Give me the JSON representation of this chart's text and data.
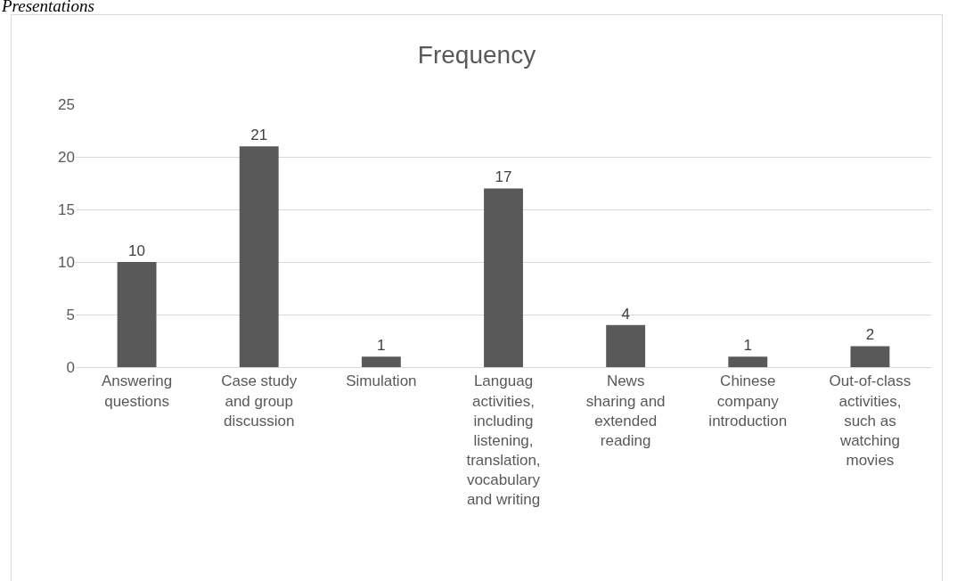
{
  "chart_data": {
    "type": "bar",
    "title": "Frequency",
    "annotations": [
      "Presentations"
    ],
    "categories": [
      "Answering questions",
      "Case study and group discussion",
      "Simulation",
      "Languag activities, including listening, translation, vocabulary and writing",
      "News sharing and extended reading",
      "Chinese company introduction",
      "Out-of-class activities, such as watching movies"
    ],
    "values": [
      10,
      21,
      1,
      17,
      4,
      1,
      2
    ],
    "color": "#595959",
    "ylim": [
      0,
      25
    ],
    "yticks": [
      0,
      5,
      10,
      15,
      20,
      25
    ],
    "grid": "y",
    "data_labels": true,
    "legend": false
  }
}
